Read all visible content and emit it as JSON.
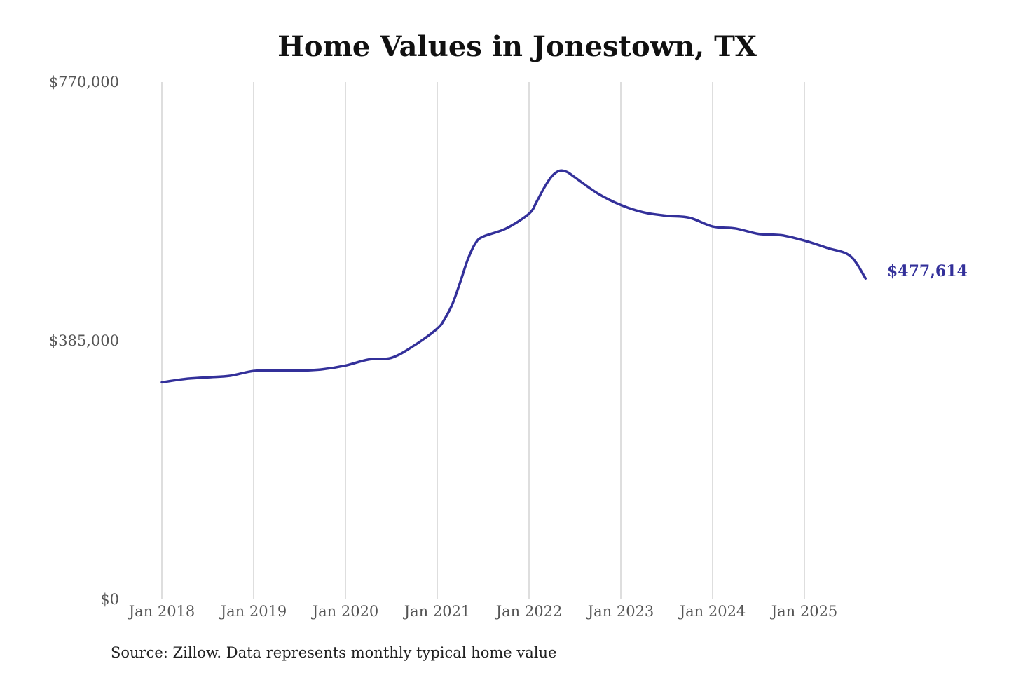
{
  "chart_data": {
    "type": "line",
    "title": "Home Values in Jonestown, TX",
    "source": "Source: Zillow. Data represents monthly typical home value",
    "y_ticks": [
      {
        "value": 770000,
        "label": "$770,000"
      },
      {
        "value": 385000,
        "label": "$385,000"
      },
      {
        "value": 0,
        "label": "$0"
      }
    ],
    "ylim": [
      0,
      770000
    ],
    "x_ticks": [
      {
        "value": "2018-01",
        "label": "Jan 2018"
      },
      {
        "value": "2019-01",
        "label": "Jan 2019"
      },
      {
        "value": "2020-01",
        "label": "Jan 2020"
      },
      {
        "value": "2021-01",
        "label": "Jan 2021"
      },
      {
        "value": "2022-01",
        "label": "Jan 2022"
      },
      {
        "value": "2023-01",
        "label": "Jan 2023"
      },
      {
        "value": "2024-01",
        "label": "Jan 2024"
      },
      {
        "value": "2025-01",
        "label": "Jan 2025"
      }
    ],
    "xlim": [
      "2018-01",
      "2025-09"
    ],
    "grid": "vertical",
    "line_color": "#33309a",
    "end_label": "$477,614",
    "series": [
      {
        "points": [
          {
            "x": "2018-01",
            "y": 323000
          },
          {
            "x": "2018-04",
            "y": 328000
          },
          {
            "x": "2018-07",
            "y": 330500
          },
          {
            "x": "2018-10",
            "y": 333000
          },
          {
            "x": "2019-01",
            "y": 340000
          },
          {
            "x": "2019-04",
            "y": 340500
          },
          {
            "x": "2019-07",
            "y": 340500
          },
          {
            "x": "2019-10",
            "y": 342500
          },
          {
            "x": "2020-01",
            "y": 348000
          },
          {
            "x": "2020-04",
            "y": 357000
          },
          {
            "x": "2020-07",
            "y": 359500
          },
          {
            "x": "2020-10",
            "y": 378000
          },
          {
            "x": "2021-01",
            "y": 403000
          },
          {
            "x": "2021-02",
            "y": 418000
          },
          {
            "x": "2021-03",
            "y": 440000
          },
          {
            "x": "2021-04",
            "y": 472000
          },
          {
            "x": "2021-05",
            "y": 506000
          },
          {
            "x": "2021-06",
            "y": 530000
          },
          {
            "x": "2021-07",
            "y": 540000
          },
          {
            "x": "2021-10",
            "y": 552000
          },
          {
            "x": "2022-01",
            "y": 574000
          },
          {
            "x": "2022-02",
            "y": 592000
          },
          {
            "x": "2022-03",
            "y": 613000
          },
          {
            "x": "2022-04",
            "y": 630000
          },
          {
            "x": "2022-05",
            "y": 638000
          },
          {
            "x": "2022-06",
            "y": 636000
          },
          {
            "x": "2022-07",
            "y": 628000
          },
          {
            "x": "2022-10",
            "y": 604000
          },
          {
            "x": "2023-01",
            "y": 587000
          },
          {
            "x": "2023-04",
            "y": 576000
          },
          {
            "x": "2023-07",
            "y": 571000
          },
          {
            "x": "2023-10",
            "y": 568000
          },
          {
            "x": "2024-01",
            "y": 555000
          },
          {
            "x": "2024-04",
            "y": 552000
          },
          {
            "x": "2024-07",
            "y": 544000
          },
          {
            "x": "2024-10",
            "y": 542000
          },
          {
            "x": "2025-01",
            "y": 534000
          },
          {
            "x": "2025-04",
            "y": 523000
          },
          {
            "x": "2025-07",
            "y": 511000
          },
          {
            "x": "2025-09",
            "y": 477614
          }
        ]
      }
    ]
  }
}
